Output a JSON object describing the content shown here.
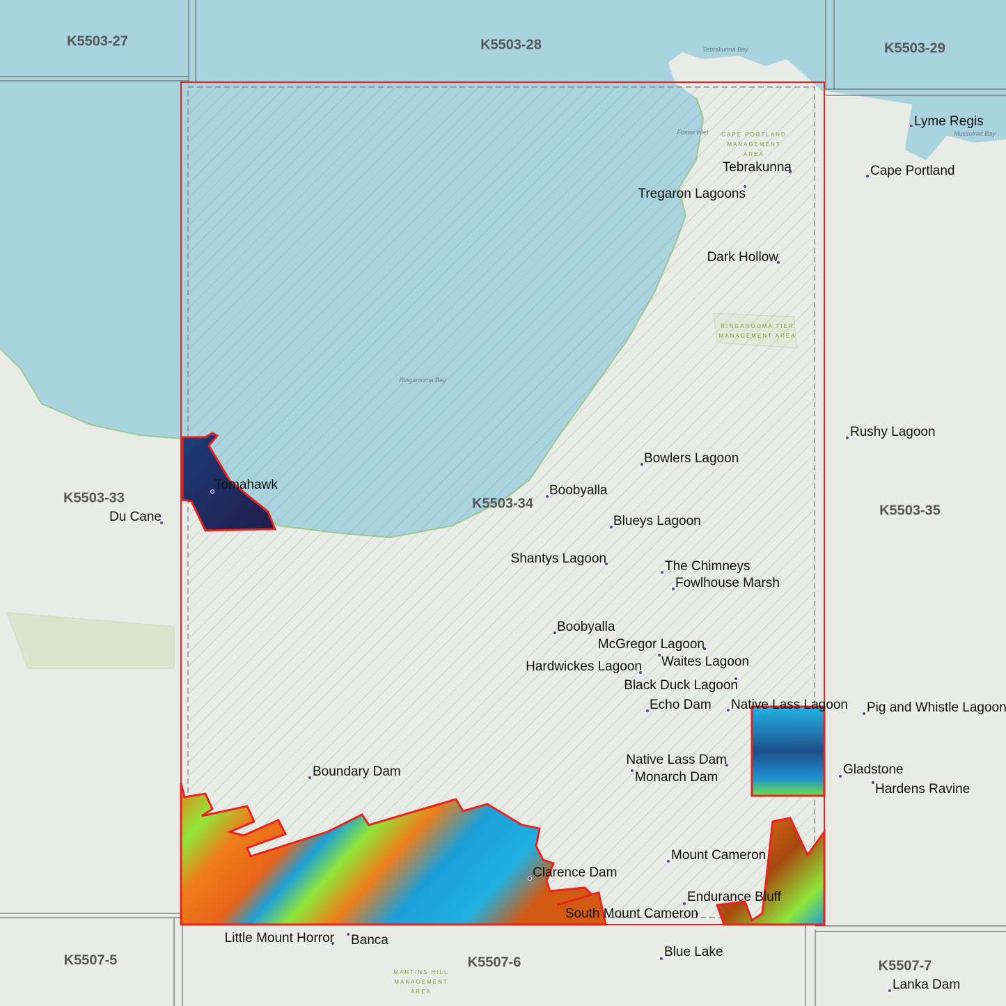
{
  "map": {
    "colors": {
      "water": "#a9d3df",
      "land": "#e9ece6",
      "selection_outline": "#e8231f",
      "tile_grid": "#6b6b6b",
      "place_dot": "#6a4a8a",
      "dem_low": "#1d9fd8",
      "dem_mid": "#8ee63a",
      "dem_high": "#ef7d1a",
      "dem_dark": "#1e2a5a"
    },
    "tiles": [
      "K5503-27",
      "K5503-28",
      "K5503-29",
      "K5503-33",
      "K5503-34",
      "K5503-35",
      "K5507-5",
      "K5507-6",
      "K5507-7"
    ],
    "places": [
      "Lyme Regis",
      "Cape Portland",
      "Tebrakunna",
      "Tregaron Lagoons",
      "Dark Hollow",
      "Bowlers Lagoon",
      "Boobyalla",
      "Blueys Lagoon",
      "Shantys Lagoon",
      "The Chimneys",
      "Fowlhouse Marsh",
      "Boobyalla",
      "McGregor Lagoon",
      "Waites Lagoon",
      "Hardwickes Lagoon",
      "Black Duck Lagoon",
      "Echo Dam",
      "Native Lass Lagoon",
      "Pig and Whistle Lagoon",
      "Native Lass Dam",
      "Monarch Dam",
      "Gladstone",
      "Hardens Ravine",
      "Boundary Dam",
      "Mount Cameron",
      "Clarence Dam",
      "Endurance Bluff",
      "South Mount Cameron",
      "Little Mount Horror",
      "Banca",
      "Blue Lake",
      "Lanka Dam",
      "Tomahawk",
      "Du Cane",
      "Rushy Lagoon"
    ],
    "water_labels": [
      "Ringarooma Bay",
      "Tebrakunna Bay",
      "Foster Inlet",
      "Mussolroe Bay"
    ],
    "area_labels": [
      "CAPE PORTLAND",
      "MANAGEMENT",
      "AREA",
      "RINGAROOMA TIER",
      "MANAGEMENT AREA",
      "MARTINS HILL",
      "MANAGEMENT",
      "AREA"
    ]
  }
}
